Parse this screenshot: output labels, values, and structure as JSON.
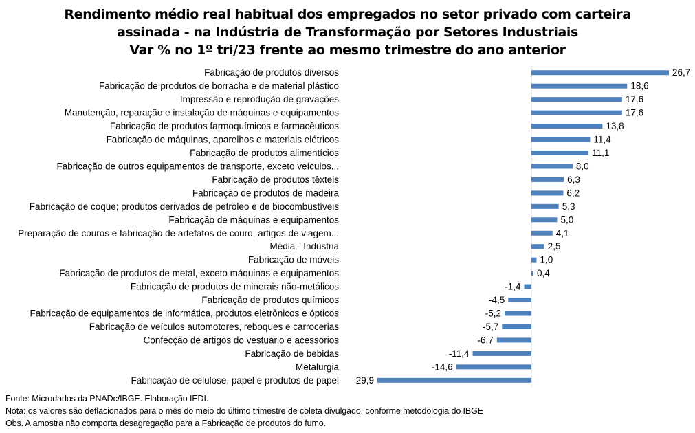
{
  "chart_data": {
    "type": "bar",
    "orientation": "horizontal",
    "title_lines": [
      "Rendimento médio real habitual dos empregados no setor privado com carteira",
      "assinada - na Indústria de Transformação por Setores Industriais",
      "Var % no 1º tri/23 frente ao mesmo trimestre do ano anterior"
    ],
    "bar_color": "#4f81bd",
    "categories": [
      "Fabricação de produtos diversos",
      "Fabricação de produtos de borracha e de material plástico",
      "Impressão e reprodução de gravações",
      "Manutenção, reparação e instalação de máquinas e equipamentos",
      "Fabricação de produtos farmoquímicos e farmacêuticos",
      "Fabricação de máquinas, aparelhos e materiais elétricos",
      "Fabricação de produtos alimentícios",
      "Fabricação de outros equipamentos de transporte, exceto veículos...",
      "Fabricação de produtos têxteis",
      "Fabricação de produtos de madeira",
      "Fabricação de coque; produtos derivados de petróleo e de biocombustíveis",
      "Fabricação de máquinas e equipamentos",
      "Preparação de couros e fabricação de artefatos de couro, artigos de viagem...",
      "Média - Industria",
      "Fabricação de móveis",
      "Fabricação de produtos de metal, exceto máquinas e equipamentos",
      "Fabricação de produtos de minerais não-metálicos",
      "Fabricação de produtos químicos",
      "Fabricação de equipamentos de informática, produtos eletrônicos e ópticos",
      "Fabricação de veículos automotores, reboques e carrocerias",
      "Confecção de artigos do vestuário e acessórios",
      "Fabricação de bebidas",
      "Metalurgia",
      "Fabricação de celulose, papel e produtos de papel"
    ],
    "values": [
      26.7,
      18.6,
      17.6,
      17.6,
      13.8,
      11.4,
      11.1,
      8.0,
      6.3,
      6.2,
      5.3,
      5.0,
      4.1,
      2.5,
      1.0,
      0.4,
      -1.4,
      -4.5,
      -5.2,
      -5.7,
      -6.7,
      -11.4,
      -14.6,
      -29.9
    ],
    "value_labels": [
      "26,7",
      "18,6",
      "17,6",
      "17,6",
      "13,8",
      "11,4",
      "11,1",
      "8,0",
      "6,3",
      "6,2",
      "5,3",
      "5,0",
      "4,1",
      "2,5",
      "1,0",
      "0,4",
      "-1,4",
      "-4,5",
      "-5,2",
      "-5,7",
      "-6,7",
      "-11,4",
      "-14,6",
      "-29,9"
    ],
    "xlim": [
      -29.9,
      26.7
    ],
    "grid": false,
    "legend": false
  },
  "notes": [
    "Fonte: Microdados da PNADc/IBGE. Elaboração IEDI.",
    "Nota: os valores são deflacionados para o mês do meio do último trimestre de coleta divulgado, conforme metodologia do IBGE",
    "Obs. A amostra não comporta desagregação para a Fabricação de produtos do fumo."
  ]
}
